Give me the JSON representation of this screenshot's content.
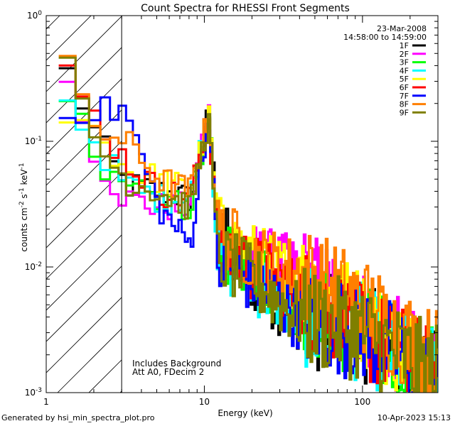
{
  "chart_data": {
    "type": "line",
    "title": "Count Spectra for RHESSI Front Segments",
    "xlabel": "Energy (keV)",
    "ylabel": "counts cm-2 s-1 keV-1",
    "xscale": "log",
    "yscale": "log",
    "xlim": [
      1,
      300
    ],
    "ylim": [
      0.001,
      1
    ],
    "x_tick_labels": [
      "1",
      "10",
      "100"
    ],
    "y_tick_labels": [
      "10-3",
      "10-2",
      "10-1",
      "100"
    ],
    "date": "23-Mar-2008",
    "time_range": "14:58:00 to 14:59:00",
    "attenuator_shaded_below_keV": 3,
    "annotations": [
      "Includes Background",
      "Att A0, FDecim 2"
    ],
    "series": [
      {
        "name": "1F",
        "color": "#000000",
        "values": [
          [
            1.25,
            0.35
          ],
          [
            2,
            0.1
          ],
          [
            3,
            0.045
          ],
          [
            5,
            0.04
          ],
          [
            8,
            0.035
          ],
          [
            10.5,
            0.17
          ],
          [
            12,
            0.02
          ],
          [
            20,
            0.008
          ],
          [
            40,
            0.004
          ],
          [
            100,
            0.003
          ],
          [
            250,
            0.0015
          ]
        ]
      },
      {
        "name": "2F",
        "color": "#ff00ff",
        "values": [
          [
            1.25,
            0.28
          ],
          [
            2,
            0.07
          ],
          [
            3,
            0.035
          ],
          [
            5,
            0.03
          ],
          [
            8,
            0.03
          ],
          [
            10.5,
            0.18
          ],
          [
            12,
            0.015
          ],
          [
            20,
            0.012
          ],
          [
            40,
            0.009
          ],
          [
            100,
            0.004
          ],
          [
            250,
            0.0015
          ]
        ]
      },
      {
        "name": "3F",
        "color": "#00ff00",
        "values": [
          [
            1.25,
            0.26
          ],
          [
            2,
            0.05
          ],
          [
            3,
            0.04
          ],
          [
            5,
            0.035
          ],
          [
            8,
            0.03
          ],
          [
            10.5,
            0.15
          ],
          [
            12,
            0.015
          ],
          [
            20,
            0.01
          ],
          [
            40,
            0.005
          ],
          [
            100,
            0.003
          ],
          [
            250,
            0.0015
          ]
        ]
      },
      {
        "name": "4F",
        "color": "#00ffff",
        "values": [
          [
            1.25,
            0.2
          ],
          [
            2,
            0.09
          ],
          [
            3,
            0.045
          ],
          [
            5,
            0.035
          ],
          [
            8,
            0.035
          ],
          [
            10.5,
            0.19
          ],
          [
            12,
            0.012
          ],
          [
            20,
            0.008
          ],
          [
            40,
            0.004
          ],
          [
            100,
            0.003
          ],
          [
            250,
            0.0015
          ]
        ]
      },
      {
        "name": "5F",
        "color": "#ffff00",
        "values": [
          [
            1.25,
            0.16
          ],
          [
            2,
            0.12
          ],
          [
            3,
            0.06
          ],
          [
            5,
            0.05
          ],
          [
            8,
            0.04
          ],
          [
            10.5,
            0.16
          ],
          [
            12,
            0.02
          ],
          [
            20,
            0.012
          ],
          [
            40,
            0.008
          ],
          [
            100,
            0.004
          ],
          [
            250,
            0.0015
          ]
        ]
      },
      {
        "name": "6F",
        "color": "#ff0000",
        "values": [
          [
            1.25,
            0.33
          ],
          [
            2,
            0.14
          ],
          [
            3,
            0.07
          ],
          [
            5,
            0.04
          ],
          [
            8,
            0.035
          ],
          [
            10.5,
            0.16
          ],
          [
            12,
            0.015
          ],
          [
            20,
            0.01
          ],
          [
            40,
            0.006
          ],
          [
            100,
            0.003
          ],
          [
            250,
            0.0015
          ]
        ]
      },
      {
        "name": "7F",
        "color": "#0000ff",
        "values": [
          [
            1.25,
            0.19
          ],
          [
            2,
            0.17
          ],
          [
            3,
            0.18
          ],
          [
            5,
            0.03
          ],
          [
            8,
            0.015
          ],
          [
            10.5,
            0.17
          ],
          [
            12,
            0.01
          ],
          [
            20,
            0.008
          ],
          [
            40,
            0.004
          ],
          [
            100,
            0.003
          ],
          [
            250,
            0.0015
          ]
        ]
      },
      {
        "name": "8F",
        "color": "#ff7f00",
        "values": [
          [
            1.25,
            0.37
          ],
          [
            2,
            0.12
          ],
          [
            3,
            0.1
          ],
          [
            5,
            0.05
          ],
          [
            8,
            0.04
          ],
          [
            10.5,
            0.16
          ],
          [
            12,
            0.02
          ],
          [
            20,
            0.012
          ],
          [
            40,
            0.009
          ],
          [
            100,
            0.005
          ],
          [
            250,
            0.002
          ]
        ]
      },
      {
        "name": "9F",
        "color": "#7f7f00",
        "values": [
          [
            1.25,
            0.42
          ],
          [
            2,
            0.09
          ],
          [
            3,
            0.05
          ],
          [
            5,
            0.04
          ],
          [
            8,
            0.03
          ],
          [
            10.5,
            0.15
          ],
          [
            12,
            0.012
          ],
          [
            20,
            0.008
          ],
          [
            40,
            0.004
          ],
          [
            100,
            0.003
          ],
          [
            250,
            0.0015
          ]
        ]
      }
    ]
  },
  "footer": {
    "left": "Generated by hsi_min_spectra_plot.pro",
    "right": "10-Apr-2023 15:13"
  }
}
